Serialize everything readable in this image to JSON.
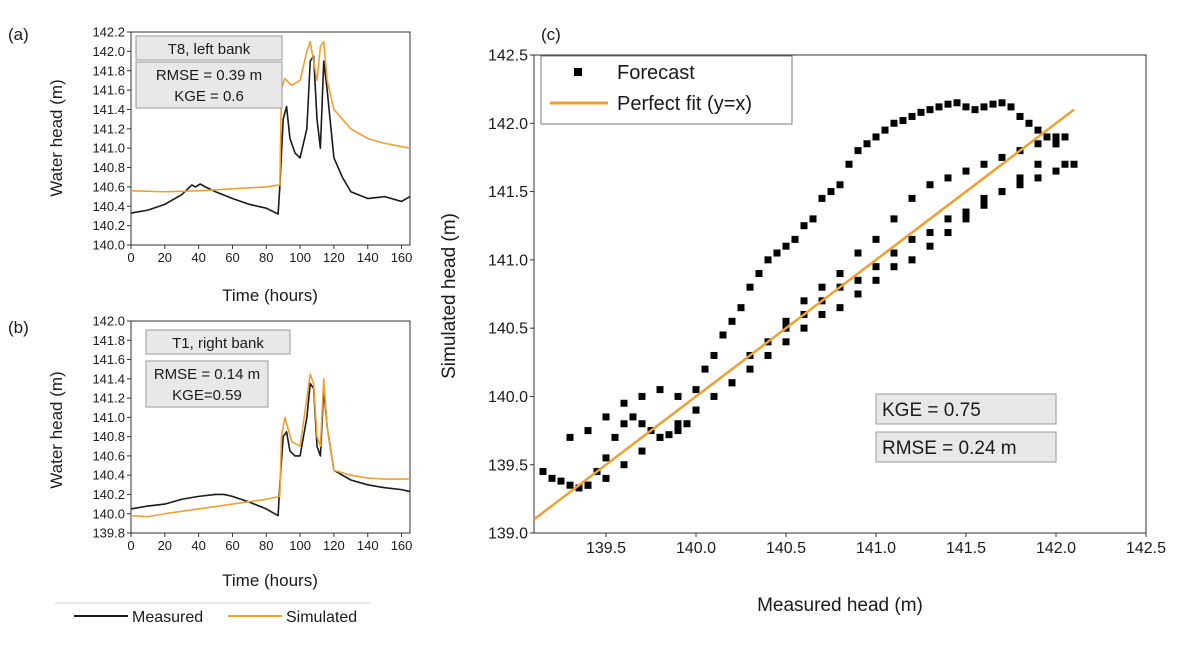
{
  "chart_data": [
    {
      "panel_label": "(a)",
      "type": "line",
      "xlabel": "Time (hours)",
      "ylabel": "Water head (m)",
      "xlim": [
        0,
        165
      ],
      "ylim": [
        140.0,
        142.2
      ],
      "xticks": [
        0,
        20,
        40,
        60,
        80,
        100,
        120,
        140,
        160
      ],
      "yticks": [
        140.0,
        140.2,
        140.4,
        140.6,
        140.8,
        141.0,
        141.2,
        141.4,
        141.6,
        141.8,
        142.0,
        142.2
      ],
      "annotations": [
        "T8, left bank",
        "RMSE = 0.39 m",
        "KGE = 0.6"
      ],
      "series": [
        {
          "name": "Measured",
          "color": "#1a1a1a",
          "x": [
            0,
            10,
            20,
            30,
            36,
            38,
            41,
            44,
            50,
            60,
            70,
            80,
            87,
            88,
            90,
            92,
            94,
            97,
            100,
            104,
            106,
            108,
            110,
            112,
            114,
            116,
            120,
            125,
            130,
            140,
            150,
            160,
            165
          ],
          "y": [
            140.33,
            140.36,
            140.42,
            140.52,
            140.62,
            140.6,
            140.63,
            140.6,
            140.55,
            140.48,
            140.42,
            140.38,
            140.32,
            140.6,
            141.3,
            141.43,
            141.1,
            140.95,
            140.9,
            141.2,
            141.9,
            141.95,
            141.3,
            141.0,
            141.9,
            141.6,
            140.9,
            140.7,
            140.55,
            140.48,
            140.5,
            140.45,
            140.5
          ]
        },
        {
          "name": "Simulated",
          "color": "#f0a030",
          "x": [
            0,
            20,
            40,
            60,
            80,
            88,
            89,
            91,
            95,
            100,
            104,
            106,
            108,
            110,
            112,
            114,
            116,
            120,
            130,
            140,
            150,
            165
          ],
          "y": [
            140.56,
            140.55,
            140.56,
            140.58,
            140.6,
            140.62,
            141.62,
            141.72,
            141.65,
            141.7,
            142.0,
            142.1,
            141.9,
            141.7,
            142.05,
            142.1,
            141.7,
            141.4,
            141.2,
            141.1,
            141.05,
            141.0
          ]
        }
      ]
    },
    {
      "panel_label": "(b)",
      "type": "line",
      "xlabel": "Time (hours)",
      "ylabel": "Water head (m)",
      "xlim": [
        0,
        165
      ],
      "ylim": [
        139.8,
        142.0
      ],
      "xticks": [
        0,
        20,
        40,
        60,
        80,
        100,
        120,
        140,
        160
      ],
      "yticks": [
        139.8,
        140.0,
        140.2,
        140.4,
        140.6,
        140.8,
        141.0,
        141.2,
        141.4,
        141.6,
        141.8,
        142.0
      ],
      "annotations": [
        "T1, right bank",
        "RMSE = 0.14 m",
        "KGE=0.59"
      ],
      "series": [
        {
          "name": "Measured",
          "color": "#1a1a1a",
          "x": [
            0,
            10,
            20,
            30,
            40,
            50,
            55,
            60,
            70,
            80,
            87,
            88,
            90,
            92,
            94,
            97,
            100,
            104,
            106,
            108,
            110,
            112,
            114,
            116,
            120,
            130,
            140,
            150,
            160,
            165
          ],
          "y": [
            140.05,
            140.08,
            140.1,
            140.15,
            140.18,
            140.2,
            140.2,
            140.18,
            140.12,
            140.05,
            139.98,
            140.3,
            140.8,
            140.85,
            140.65,
            140.6,
            140.6,
            141.0,
            141.35,
            141.3,
            140.7,
            140.6,
            141.3,
            140.9,
            140.45,
            140.35,
            140.3,
            140.27,
            140.25,
            140.23
          ]
        },
        {
          "name": "Simulated",
          "color": "#f0a030",
          "x": [
            0,
            10,
            20,
            40,
            60,
            80,
            88,
            89,
            91,
            95,
            100,
            104,
            106,
            108,
            110,
            112,
            114,
            116,
            120,
            130,
            140,
            150,
            165
          ],
          "y": [
            139.98,
            139.97,
            140.0,
            140.05,
            140.1,
            140.15,
            140.18,
            140.8,
            141.0,
            140.75,
            140.7,
            141.2,
            141.45,
            141.35,
            140.8,
            140.7,
            141.4,
            140.9,
            140.45,
            140.4,
            140.37,
            140.36,
            140.36
          ]
        }
      ]
    },
    {
      "panel_label": "(c)",
      "type": "scatter",
      "xlabel": "Measured head (m)",
      "ylabel": "Simulated head (m)",
      "xlim": [
        139.1,
        142.5
      ],
      "ylim": [
        139.0,
        142.5
      ],
      "xticks": [
        139.5,
        140.0,
        140.5,
        141.0,
        141.5,
        142.0,
        142.5
      ],
      "yticks": [
        139.0,
        139.5,
        140.0,
        140.5,
        141.0,
        141.5,
        142.0,
        142.5
      ],
      "legend_position": "top-left",
      "annotations": [
        "KGE = 0.75",
        "RMSE = 0.24 m"
      ],
      "series": [
        {
          "name": "Forecast",
          "color": "#000000",
          "x": [
            139.15,
            139.2,
            139.25,
            139.3,
            139.35,
            139.4,
            139.45,
            139.5,
            139.55,
            139.6,
            139.65,
            139.7,
            139.75,
            139.8,
            139.85,
            139.9,
            139.95,
            140.0,
            139.3,
            139.4,
            139.5,
            139.6,
            139.7,
            139.8,
            139.9,
            140.0,
            140.05,
            140.1,
            140.15,
            140.2,
            140.25,
            140.3,
            140.35,
            140.4,
            140.45,
            140.5,
            140.55,
            140.6,
            140.65,
            140.7,
            140.75,
            140.8,
            140.85,
            140.9,
            140.95,
            141.0,
            141.05,
            141.1,
            141.15,
            141.2,
            141.25,
            141.3,
            141.35,
            141.4,
            141.45,
            141.5,
            141.55,
            141.6,
            141.65,
            141.7,
            141.75,
            141.8,
            141.85,
            141.9,
            141.95,
            142.0,
            142.05,
            142.1,
            140.2,
            140.3,
            140.4,
            140.5,
            140.6,
            140.7,
            140.8,
            140.9,
            141.0,
            141.1,
            141.2,
            141.3,
            141.4,
            141.5,
            141.6,
            141.7,
            141.8,
            141.9,
            142.0,
            140.5,
            140.6,
            140.7,
            140.8,
            140.9,
            141.0,
            141.1,
            141.2,
            141.3,
            141.4,
            141.5,
            141.6,
            141.7,
            141.8,
            141.9,
            142.0,
            142.05,
            139.4,
            139.5,
            139.6,
            139.7,
            139.8,
            139.9,
            140.0,
            140.1,
            140.2,
            140.3,
            140.4,
            140.5,
            140.6,
            140.7,
            140.8,
            140.9,
            141.0,
            141.1,
            141.2,
            141.3,
            141.4,
            141.5,
            141.6,
            141.7,
            141.8,
            141.9,
            142.0
          ],
          "y": [
            139.45,
            139.4,
            139.38,
            139.35,
            139.33,
            139.35,
            139.45,
            139.55,
            139.7,
            139.8,
            139.85,
            139.8,
            139.75,
            139.7,
            139.72,
            139.75,
            139.8,
            139.9,
            139.7,
            139.75,
            139.85,
            139.95,
            140.0,
            140.05,
            140.0,
            140.05,
            140.2,
            140.3,
            140.45,
            140.55,
            140.65,
            140.8,
            140.9,
            141.0,
            141.05,
            141.1,
            141.15,
            141.25,
            141.3,
            141.45,
            141.5,
            141.55,
            141.7,
            141.8,
            141.85,
            141.9,
            141.95,
            142.0,
            142.02,
            142.05,
            142.08,
            142.1,
            142.12,
            142.14,
            142.15,
            142.12,
            142.1,
            142.12,
            142.14,
            142.15,
            142.12,
            142.05,
            142.0,
            141.95,
            141.9,
            141.85,
            141.9,
            141.7,
            140.1,
            140.3,
            140.4,
            140.55,
            140.7,
            140.8,
            140.9,
            141.05,
            141.15,
            141.3,
            141.45,
            141.55,
            141.6,
            141.65,
            141.7,
            141.75,
            141.8,
            141.85,
            141.9,
            140.5,
            140.6,
            140.7,
            140.8,
            140.85,
            140.95,
            141.05,
            141.15,
            141.2,
            141.3,
            141.35,
            141.45,
            141.5,
            141.55,
            141.6,
            141.65,
            141.7,
            139.35,
            139.4,
            139.5,
            139.6,
            139.7,
            139.8,
            139.9,
            140.0,
            140.1,
            140.2,
            140.3,
            140.4,
            140.5,
            140.6,
            140.65,
            140.75,
            140.85,
            140.95,
            141.0,
            141.1,
            141.2,
            141.3,
            141.4,
            141.5,
            141.6,
            141.7,
            141.85
          ]
        },
        {
          "name": "Perfect fit (y=x)",
          "color": "#f0a030",
          "x": [
            139.1,
            142.1
          ],
          "y": [
            139.1,
            142.1
          ]
        }
      ]
    }
  ],
  "shared_legend": [
    {
      "name": "Measured",
      "color": "#1a1a1a"
    },
    {
      "name": "Simulated",
      "color": "#f0a030"
    }
  ]
}
